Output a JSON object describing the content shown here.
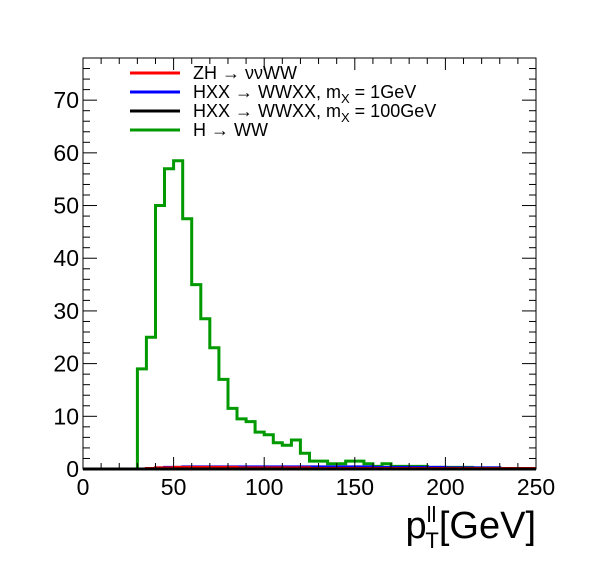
{
  "chart_data": {
    "type": "histogram",
    "xlabel": {
      "main": "p",
      "sup": "ll",
      "sub": "T",
      "unit": "[GeV]"
    },
    "xlim": [
      0,
      250
    ],
    "ylim": [
      0,
      78
    ],
    "bin_width": 5,
    "x_ticks": [
      0,
      50,
      100,
      150,
      200,
      250
    ],
    "y_ticks": [
      0,
      10,
      20,
      30,
      40,
      50,
      60,
      70
    ],
    "legend_position": "top-left",
    "legend": [
      {
        "label_parts": [
          {
            "t": "ZH → ννWW"
          }
        ],
        "color": "#ff0000"
      },
      {
        "label_parts": [
          {
            "t": "HXX → WWXX, m"
          },
          {
            "t": "X",
            "sub": true
          },
          {
            "t": " = 1GeV"
          }
        ],
        "color": "#0000ff"
      },
      {
        "label_parts": [
          {
            "t": "HXX → WWXX, m"
          },
          {
            "t": "X",
            "sub": true
          },
          {
            "t": " = 100GeV"
          }
        ],
        "color": "#000000"
      },
      {
        "label_parts": [
          {
            "t": "H → WW"
          }
        ],
        "color": "#009900"
      }
    ],
    "series": [
      {
        "name": "H → WW",
        "color": "#009900",
        "values": [
          0,
          0,
          0,
          0,
          0,
          0,
          19,
          25,
          50,
          57,
          58.5,
          47.5,
          35,
          28.5,
          23,
          17,
          11.5,
          9.5,
          9,
          7,
          6.5,
          5,
          4.5,
          5.5,
          3,
          1.5,
          1.5,
          1,
          1,
          1.5,
          1.5,
          1,
          0.5,
          1,
          0.5,
          0.5,
          0.5,
          0.5,
          0.3,
          0.3,
          0.3,
          0.3,
          0.3,
          0.2,
          0.2,
          0.2,
          0.1,
          0.1,
          0.1,
          0.1
        ]
      },
      {
        "name": "HXX → WWXX, mX = 1GeV",
        "color": "#0000ff",
        "values": [
          0,
          0,
          0,
          0,
          0,
          0,
          0,
          0.1,
          0.2,
          0.3,
          0.3,
          0.4,
          0.4,
          0.4,
          0.4,
          0.4,
          0.4,
          0.4,
          0.4,
          0.4,
          0.4,
          0.4,
          0.4,
          0.4,
          0.4,
          0.4,
          0.4,
          0.4,
          0.4,
          0.4,
          0.4,
          0.4,
          0.3,
          0.3,
          0.3,
          0.3,
          0.3,
          0.3,
          0.3,
          0.3,
          0.2,
          0.2,
          0.2,
          0.2,
          0.2,
          0.2,
          0.1,
          0.1,
          0.1,
          0.1
        ]
      },
      {
        "name": "ZH → ννWW",
        "color": "#ff0000",
        "values": [
          0,
          0,
          0,
          0,
          0,
          0,
          0,
          0.1,
          0.2,
          0.2,
          0.3,
          0.3,
          0.3,
          0.3,
          0.3,
          0.3,
          0.3,
          0.2,
          0.2,
          0.2,
          0.2,
          0.2,
          0.2,
          0.2,
          0.2,
          0.1,
          0.1,
          0.1,
          0.1,
          0.1,
          0.1,
          0.1,
          0.1,
          0.1,
          0.1,
          0.1,
          0.1,
          0.1,
          0.1,
          0.1,
          0.1,
          0.1,
          0.1,
          0.1,
          0.1,
          0.1,
          0.1,
          0.1,
          0.1,
          0.1
        ]
      },
      {
        "name": "HXX → WWXX, mX = 100GeV",
        "color": "#000000",
        "values": [
          0,
          0,
          0,
          0,
          0,
          0,
          0,
          0,
          0,
          0,
          0,
          0,
          0,
          0,
          0,
          0,
          0,
          0,
          0,
          0,
          0,
          0,
          0,
          0,
          0,
          0,
          0,
          0,
          0,
          0,
          0,
          0,
          0,
          0,
          0,
          0,
          0,
          0,
          0,
          0,
          0,
          0,
          0,
          0,
          0,
          0,
          0,
          0,
          0,
          0
        ]
      }
    ]
  }
}
